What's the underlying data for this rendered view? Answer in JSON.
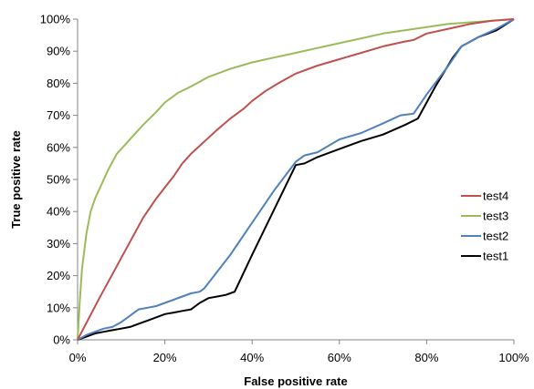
{
  "chart_data": {
    "type": "line",
    "title": "",
    "xlabel": "False positive rate",
    "ylabel": "True positive rate",
    "xlim": [
      0,
      1
    ],
    "ylim": [
      0,
      1
    ],
    "xticks": [
      0,
      0.2,
      0.4,
      0.6,
      0.8,
      1.0
    ],
    "xtick_labels": [
      "0%",
      "20%",
      "40%",
      "60%",
      "80%",
      "100%"
    ],
    "yticks": [
      0,
      0.1,
      0.2,
      0.3,
      0.4,
      0.5,
      0.6,
      0.7,
      0.8,
      0.9,
      1.0
    ],
    "ytick_labels": [
      "0%",
      "10%",
      "20%",
      "30%",
      "40%",
      "50%",
      "60%",
      "70%",
      "80%",
      "90%",
      "100%"
    ],
    "grid": false,
    "legend_position": "right",
    "series": [
      {
        "name": "test4",
        "color": "#c0504d",
        "x": [
          0,
          0.05,
          0.1,
          0.15,
          0.18,
          0.2,
          0.22,
          0.24,
          0.26,
          0.28,
          0.3,
          0.32,
          0.35,
          0.38,
          0.4,
          0.43,
          0.46,
          0.5,
          0.55,
          0.6,
          0.65,
          0.7,
          0.75,
          0.77,
          0.8,
          0.85,
          0.9,
          0.95,
          1.0
        ],
        "y": [
          0,
          0.13,
          0.255,
          0.38,
          0.44,
          0.475,
          0.51,
          0.55,
          0.58,
          0.605,
          0.63,
          0.655,
          0.69,
          0.72,
          0.745,
          0.775,
          0.8,
          0.83,
          0.855,
          0.875,
          0.895,
          0.915,
          0.93,
          0.935,
          0.955,
          0.97,
          0.985,
          0.995,
          1.0
        ]
      },
      {
        "name": "test3",
        "color": "#9bbb59",
        "x": [
          0,
          0.005,
          0.01,
          0.02,
          0.03,
          0.04,
          0.05,
          0.07,
          0.09,
          0.11,
          0.13,
          0.15,
          0.18,
          0.2,
          0.23,
          0.26,
          0.3,
          0.35,
          0.4,
          0.45,
          0.5,
          0.55,
          0.6,
          0.65,
          0.7,
          0.75,
          0.8,
          0.85,
          0.9,
          0.95,
          1.0
        ],
        "y": [
          0,
          0.12,
          0.22,
          0.33,
          0.4,
          0.44,
          0.47,
          0.53,
          0.58,
          0.61,
          0.64,
          0.67,
          0.71,
          0.74,
          0.77,
          0.79,
          0.82,
          0.845,
          0.865,
          0.88,
          0.895,
          0.91,
          0.925,
          0.94,
          0.955,
          0.965,
          0.975,
          0.985,
          0.99,
          0.995,
          1.0
        ]
      },
      {
        "name": "test2",
        "color": "#4f81bd",
        "x": [
          0,
          0.02,
          0.04,
          0.06,
          0.08,
          0.1,
          0.12,
          0.14,
          0.16,
          0.18,
          0.2,
          0.22,
          0.24,
          0.26,
          0.28,
          0.29,
          0.35,
          0.4,
          0.45,
          0.5,
          0.52,
          0.55,
          0.6,
          0.65,
          0.7,
          0.74,
          0.77,
          0.8,
          0.85,
          0.88,
          0.92,
          0.96,
          1.0
        ],
        "y": [
          0,
          0.015,
          0.025,
          0.035,
          0.04,
          0.055,
          0.075,
          0.095,
          0.1,
          0.105,
          0.115,
          0.125,
          0.135,
          0.145,
          0.15,
          0.16,
          0.265,
          0.365,
          0.465,
          0.555,
          0.575,
          0.585,
          0.625,
          0.645,
          0.675,
          0.7,
          0.705,
          0.765,
          0.855,
          0.915,
          0.945,
          0.97,
          1.0
        ]
      },
      {
        "name": "test1",
        "color": "#000000",
        "x": [
          0,
          0.02,
          0.04,
          0.06,
          0.08,
          0.1,
          0.12,
          0.14,
          0.16,
          0.18,
          0.2,
          0.22,
          0.24,
          0.26,
          0.28,
          0.3,
          0.32,
          0.34,
          0.36,
          0.4,
          0.45,
          0.5,
          0.52,
          0.55,
          0.6,
          0.65,
          0.7,
          0.75,
          0.78,
          0.82,
          0.86,
          0.88,
          0.92,
          0.96,
          1.0
        ],
        "y": [
          0,
          0.01,
          0.02,
          0.025,
          0.03,
          0.035,
          0.04,
          0.05,
          0.06,
          0.07,
          0.08,
          0.085,
          0.09,
          0.095,
          0.115,
          0.13,
          0.135,
          0.14,
          0.15,
          0.265,
          0.405,
          0.545,
          0.55,
          0.57,
          0.595,
          0.62,
          0.64,
          0.67,
          0.69,
          0.79,
          0.88,
          0.915,
          0.945,
          0.965,
          1.0
        ]
      }
    ],
    "legend_order": [
      "test4",
      "test3",
      "test2",
      "test1"
    ]
  }
}
